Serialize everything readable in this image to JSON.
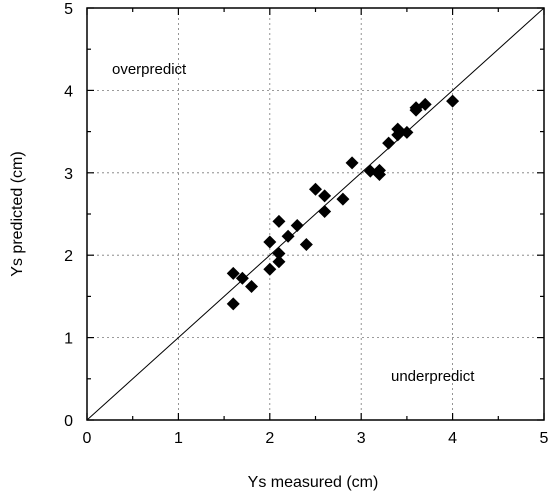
{
  "chart_data": {
    "type": "scatter",
    "title": "",
    "xlabel": "Ys measured (cm)",
    "ylabel": "Ys predicted (cm)",
    "xlim": [
      0,
      5
    ],
    "ylim": [
      0,
      5
    ],
    "xticks": [
      "0",
      "1",
      "2",
      "3",
      "4",
      "5"
    ],
    "yticks": [
      "0",
      "1",
      "2",
      "3",
      "4",
      "5"
    ],
    "grid": true,
    "marker": "diamond",
    "marker_color": "#000000",
    "reference_line": {
      "label": "",
      "x": [
        0,
        5
      ],
      "y": [
        0,
        5
      ]
    },
    "annotations": [
      "overpredict",
      "underpredict"
    ],
    "points": [
      {
        "x": 1.6,
        "y": 1.78
      },
      {
        "x": 1.6,
        "y": 1.41
      },
      {
        "x": 1.7,
        "y": 1.72
      },
      {
        "x": 1.8,
        "y": 1.62
      },
      {
        "x": 2.0,
        "y": 1.83
      },
      {
        "x": 2.0,
        "y": 2.16
      },
      {
        "x": 2.1,
        "y": 1.92
      },
      {
        "x": 2.1,
        "y": 2.02
      },
      {
        "x": 2.1,
        "y": 2.41
      },
      {
        "x": 2.2,
        "y": 2.23
      },
      {
        "x": 2.3,
        "y": 2.36
      },
      {
        "x": 2.4,
        "y": 2.13
      },
      {
        "x": 2.5,
        "y": 2.8
      },
      {
        "x": 2.6,
        "y": 2.53
      },
      {
        "x": 2.6,
        "y": 2.72
      },
      {
        "x": 2.8,
        "y": 2.68
      },
      {
        "x": 2.9,
        "y": 3.12
      },
      {
        "x": 3.1,
        "y": 3.02
      },
      {
        "x": 3.2,
        "y": 2.98
      },
      {
        "x": 3.2,
        "y": 3.03
      },
      {
        "x": 3.3,
        "y": 3.36
      },
      {
        "x": 3.4,
        "y": 3.46
      },
      {
        "x": 3.4,
        "y": 3.53
      },
      {
        "x": 3.5,
        "y": 3.49
      },
      {
        "x": 3.6,
        "y": 3.76
      },
      {
        "x": 3.6,
        "y": 3.79
      },
      {
        "x": 3.7,
        "y": 3.83
      },
      {
        "x": 4.0,
        "y": 3.87
      }
    ]
  }
}
